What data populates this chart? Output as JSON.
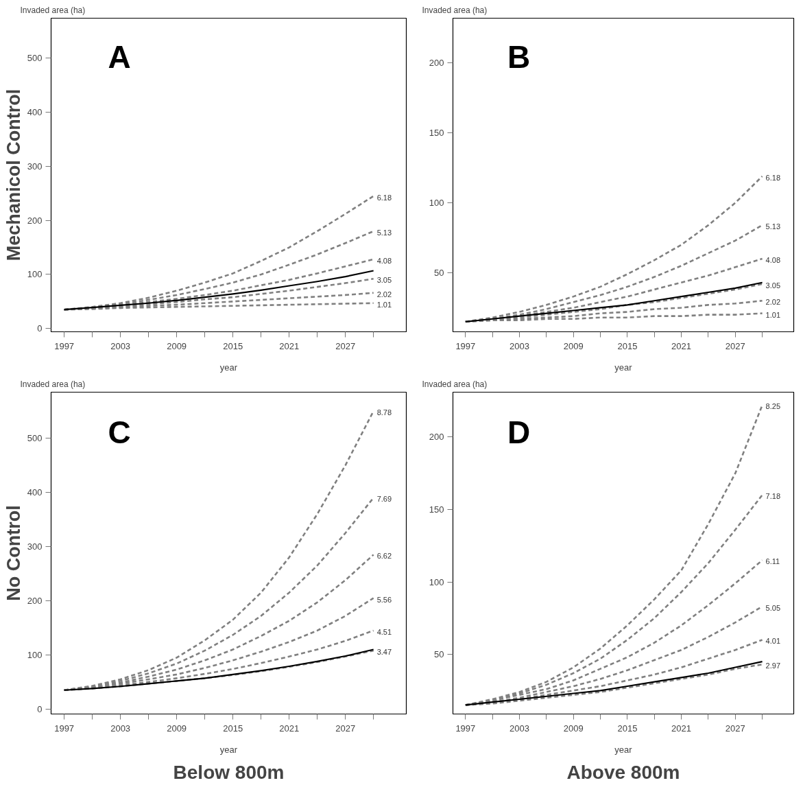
{
  "chart_data": [
    {
      "type": "line",
      "title": "A",
      "ylabel": "Invaded area (ha)",
      "xlabel": "year",
      "annotations": [
        "Mechanicol Control"
      ],
      "x": [
        1997,
        2000,
        2003,
        2006,
        2009,
        2012,
        2015,
        2018,
        2021,
        2024,
        2027,
        2030
      ],
      "xlim": [
        1995.6,
        2033.5
      ],
      "xticks": [
        1997,
        {
          "value": 2000,
          "label": null
        },
        2003,
        {
          "value": 2006,
          "label": null
        },
        2009,
        {
          "value": 2012,
          "label": null
        },
        2015,
        {
          "value": 2018,
          "label": null
        },
        2021,
        {
          "value": 2024,
          "label": null
        },
        2027,
        {
          "value": 2030,
          "label": null
        }
      ],
      "ylim": [
        -6,
        574
      ],
      "yticks": [
        0,
        100,
        200,
        300,
        400,
        500
      ],
      "grid": false,
      "legend": false,
      "series": [
        {
          "name": "6.18",
          "color": "#808080",
          "line_style": "dashed",
          "values": [
            35,
            40,
            47,
            57,
            70,
            85,
            102,
            125,
            150,
            180,
            212,
            245
          ]
        },
        {
          "name": "5.13",
          "color": "#808080",
          "line_style": "dashed",
          "values": [
            35,
            39,
            45,
            53,
            62,
            73,
            85,
            100,
            118,
            137,
            158,
            180
          ]
        },
        {
          "name": "4.08",
          "color": "#808080",
          "line_style": "dashed",
          "values": [
            35,
            38,
            43,
            49,
            55,
            62,
            70,
            80,
            90,
            102,
            115,
            128
          ]
        },
        {
          "name": "3.05",
          "color": "#808080",
          "line_style": "dashed",
          "values": [
            35,
            38,
            41,
            45,
            49,
            54,
            58,
            64,
            70,
            77,
            84,
            92
          ]
        },
        {
          "name": "2.02",
          "color": "#808080",
          "line_style": "dashed",
          "values": [
            35,
            37,
            39,
            42,
            44,
            47,
            50,
            53,
            56,
            59,
            62,
            66
          ]
        },
        {
          "name": "1.01",
          "color": "#808080",
          "line_style": "dashed",
          "values": [
            35,
            36,
            38,
            39,
            40,
            41,
            42,
            43,
            44,
            45,
            46,
            47
          ]
        },
        {
          "color": "#000000",
          "line_style": "solid",
          "values": [
            35,
            39,
            43,
            47,
            52,
            58,
            64,
            71,
            79,
            87,
            96,
            107
          ]
        }
      ]
    },
    {
      "type": "line",
      "title": "B",
      "ylabel": "Invaded area (ha)",
      "xlabel": "year",
      "x": [
        1997,
        2000,
        2003,
        2006,
        2009,
        2012,
        2015,
        2018,
        2021,
        2024,
        2027,
        2030
      ],
      "xlim": [
        1995.6,
        2033.5
      ],
      "xticks": [
        1997,
        {
          "value": 2000,
          "label": null
        },
        2003,
        {
          "value": 2006,
          "label": null
        },
        2009,
        {
          "value": 2012,
          "label": null
        },
        2015,
        {
          "value": 2018,
          "label": null
        },
        2021,
        {
          "value": 2024,
          "label": null
        },
        2027,
        {
          "value": 2030,
          "label": null
        }
      ],
      "ylim": [
        7.8,
        232
      ],
      "yticks": [
        50,
        100,
        150,
        200
      ],
      "grid": false,
      "legend": false,
      "series": [
        {
          "name": "6.18",
          "color": "#808080",
          "line_style": "dashed",
          "values": [
            15,
            18,
            22,
            27,
            33,
            40,
            49,
            59,
            70,
            84,
            100,
            119
          ]
        },
        {
          "name": "5.13",
          "color": "#808080",
          "line_style": "dashed",
          "values": [
            15,
            17,
            20,
            24,
            29,
            34,
            40,
            47,
            55,
            64,
            73,
            84
          ]
        },
        {
          "name": "4.08",
          "color": "#808080",
          "line_style": "dashed",
          "values": [
            15,
            17,
            19,
            22,
            25,
            29,
            33,
            38,
            43,
            48,
            54,
            60
          ]
        },
        {
          "name": "3.05",
          "color": "#808080",
          "line_style": "dashed",
          "values": [
            15,
            17,
            18,
            20,
            22,
            24,
            27,
            29,
            32,
            35,
            38,
            42
          ]
        },
        {
          "name": "2.02",
          "color": "#808080",
          "line_style": "dashed",
          "values": [
            15,
            16,
            17,
            18,
            19,
            21,
            22,
            24,
            25,
            27,
            28,
            30
          ]
        },
        {
          "name": "1.01",
          "color": "#808080",
          "line_style": "dashed",
          "values": [
            15,
            16,
            16,
            17,
            17,
            18,
            18,
            19,
            19,
            20,
            20,
            21
          ]
        },
        {
          "color": "#000000",
          "line_style": "solid",
          "values": [
            15,
            17,
            19,
            21,
            23,
            25,
            27,
            30,
            33,
            36,
            39,
            43
          ]
        }
      ]
    },
    {
      "type": "line",
      "title": "C",
      "ylabel": "Invaded area (ha)",
      "xlabel": "year",
      "annotations": [
        "No Control",
        "Below 800m"
      ],
      "x": [
        1997,
        2000,
        2003,
        2006,
        2009,
        2012,
        2015,
        2018,
        2021,
        2024,
        2027,
        2030
      ],
      "xlim": [
        1995.6,
        2033.5
      ],
      "xticks": [
        1997,
        {
          "value": 2000,
          "label": null
        },
        2003,
        {
          "value": 2006,
          "label": null
        },
        2009,
        {
          "value": 2012,
          "label": null
        },
        2015,
        {
          "value": 2018,
          "label": null
        },
        2021,
        {
          "value": 2024,
          "label": null
        },
        2027,
        {
          "value": 2030,
          "label": null
        }
      ],
      "ylim": [
        -9,
        585
      ],
      "yticks": [
        0,
        100,
        200,
        300,
        400,
        500
      ],
      "grid": false,
      "legend": false,
      "series": [
        {
          "name": "8.78",
          "color": "#808080",
          "line_style": "dashed",
          "values": [
            35,
            43,
            55,
            72,
            95,
            127,
            165,
            215,
            280,
            360,
            450,
            550
          ]
        },
        {
          "name": "7.69",
          "color": "#808080",
          "line_style": "dashed",
          "values": [
            35,
            42,
            52,
            66,
            84,
            108,
            137,
            172,
            215,
            265,
            325,
            390
          ]
        },
        {
          "name": "6.62",
          "color": "#808080",
          "line_style": "dashed",
          "values": [
            35,
            41,
            49,
            60,
            73,
            90,
            110,
            135,
            163,
            197,
            238,
            285
          ]
        },
        {
          "name": "5.56",
          "color": "#808080",
          "line_style": "dashed",
          "values": [
            35,
            40,
            47,
            55,
            64,
            76,
            90,
            106,
            124,
            145,
            172,
            205
          ]
        },
        {
          "name": "4.51",
          "color": "#808080",
          "line_style": "dashed",
          "values": [
            35,
            39,
            44,
            50,
            57,
            65,
            74,
            85,
            97,
            110,
            126,
            145
          ]
        },
        {
          "name": "3.47",
          "color": "#808080",
          "line_style": "dashed",
          "values": [
            35,
            38,
            42,
            47,
            52,
            57,
            63,
            70,
            78,
            87,
            97,
            108
          ]
        },
        {
          "color": "#000000",
          "line_style": "solid",
          "values": [
            35,
            38,
            42,
            47,
            52,
            57,
            64,
            71,
            79,
            88,
            98,
            110
          ]
        }
      ]
    },
    {
      "type": "line",
      "title": "D",
      "ylabel": "Invaded area (ha)",
      "xlabel": "year",
      "annotations": [
        "Above 800m"
      ],
      "x": [
        1997,
        2000,
        2003,
        2006,
        2009,
        2012,
        2015,
        2018,
        2021,
        2024,
        2027,
        2030
      ],
      "xlim": [
        1995.6,
        2033.5
      ],
      "xticks": [
        1997,
        {
          "value": 2000,
          "label": null
        },
        2003,
        {
          "value": 2006,
          "label": null
        },
        2009,
        {
          "value": 2012,
          "label": null
        },
        2015,
        {
          "value": 2018,
          "label": null
        },
        2021,
        {
          "value": 2024,
          "label": null
        },
        2027,
        {
          "value": 2030,
          "label": null
        }
      ],
      "ylim": [
        8.8,
        231
      ],
      "yticks": [
        50,
        100,
        150,
        200
      ],
      "grid": false,
      "legend": false,
      "series": [
        {
          "name": "8.25",
          "color": "#808080",
          "line_style": "dashed",
          "values": [
            15,
            19,
            24,
            31,
            41,
            54,
            70,
            88,
            108,
            140,
            175,
            222
          ]
        },
        {
          "name": "7.18",
          "color": "#808080",
          "line_style": "dashed",
          "values": [
            15,
            18,
            23,
            29,
            37,
            47,
            60,
            75,
            93,
            113,
            136,
            160
          ]
        },
        {
          "name": "6.11",
          "color": "#808080",
          "line_style": "dashed",
          "values": [
            15,
            18,
            22,
            26,
            32,
            40,
            48,
            58,
            70,
            84,
            99,
            115
          ]
        },
        {
          "name": "5.05",
          "color": "#808080",
          "line_style": "dashed",
          "values": [
            15,
            17,
            20,
            24,
            28,
            33,
            39,
            46,
            53,
            62,
            72,
            83
          ]
        },
        {
          "name": "4.01",
          "color": "#808080",
          "line_style": "dashed",
          "values": [
            15,
            17,
            19,
            22,
            25,
            28,
            32,
            36,
            41,
            47,
            53,
            60
          ]
        },
        {
          "name": "2.97",
          "color": "#808080",
          "line_style": "dashed",
          "values": [
            15,
            16,
            18,
            20,
            22,
            24,
            27,
            30,
            33,
            36,
            40,
            43
          ]
        },
        {
          "color": "#000000",
          "line_style": "solid",
          "values": [
            15,
            17,
            19,
            21,
            23,
            25,
            28,
            31,
            34,
            37,
            41,
            45
          ]
        }
      ]
    }
  ]
}
